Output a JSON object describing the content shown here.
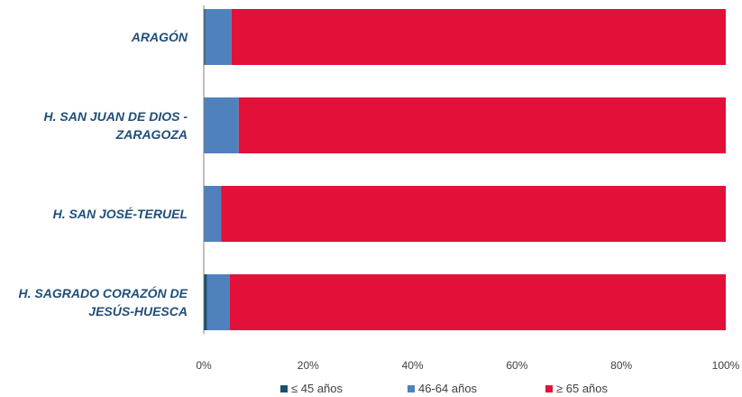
{
  "chart_data": {
    "type": "bar",
    "orientation": "horizontal",
    "stacked": true,
    "percent": true,
    "categories": [
      [
        "ARAGÓN"
      ],
      [
        "H. SAN JUAN DE DIOS -",
        "ZARAGOZA"
      ],
      [
        "H. SAN JOSÉ-TERUEL"
      ],
      [
        "H. SAGRADO CORAZÓN DE",
        "JESÚS-HUESCA"
      ]
    ],
    "series": [
      {
        "name": "≤ 45 años",
        "color": "#1b4f6b",
        "values": [
          0.3,
          0.0,
          0.0,
          0.6
        ]
      },
      {
        "name": "46-64 años",
        "color": "#4f81bd",
        "values": [
          5.0,
          6.7,
          3.3,
          4.4
        ]
      },
      {
        "name": "≥ 65 años",
        "color": "#e3103a",
        "values": [
          94.7,
          93.3,
          96.7,
          95.0
        ]
      }
    ],
    "xlim": [
      0,
      100
    ],
    "xticks": [
      "0%",
      "20%",
      "40%",
      "60%",
      "80%",
      "100%"
    ],
    "legend_position": "bottom",
    "grid": false
  }
}
